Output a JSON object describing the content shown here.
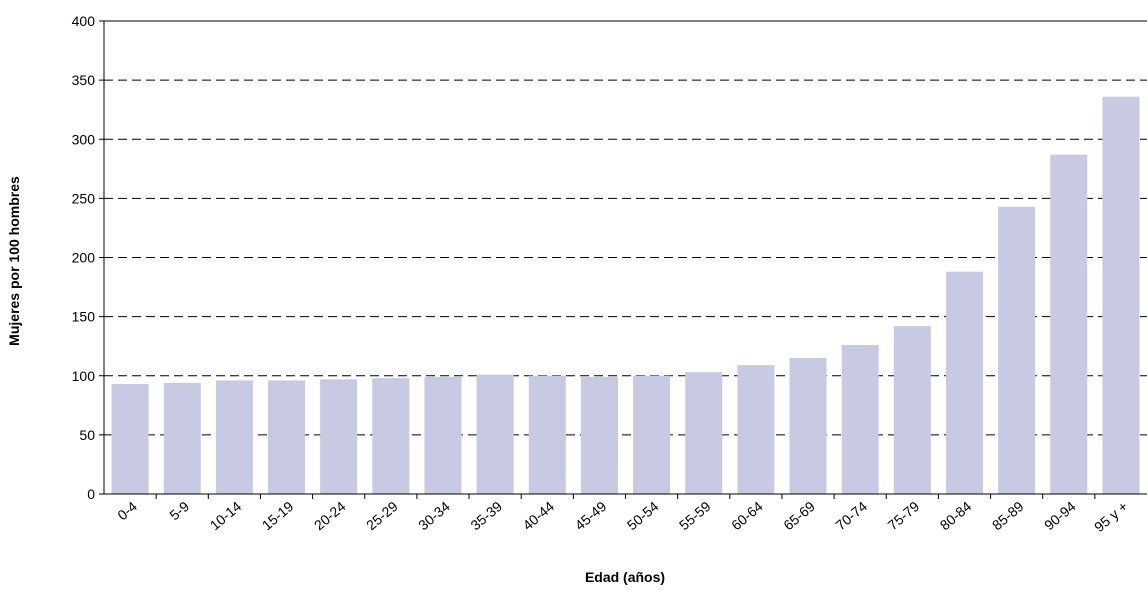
{
  "chart_data": {
    "type": "bar",
    "title": "",
    "xlabel": "Edad (años)",
    "ylabel": "Mujeres por 100 hombres",
    "ylim": [
      0,
      400
    ],
    "yticks": [
      0,
      50,
      100,
      150,
      200,
      250,
      300,
      350,
      400
    ],
    "grid": "horizontal dashed",
    "bar_color": "#c8c9e2",
    "categories": [
      "0-4",
      "5-9",
      "10-14",
      "15-19",
      "20-24",
      "25-29",
      "30-34",
      "35-39",
      "40-44",
      "45-49",
      "50-54",
      "55-59",
      "60-64",
      "65-69",
      "70-74",
      "75-79",
      "80-84",
      "85-89",
      "90-94",
      "95 y +"
    ],
    "values": [
      93,
      94,
      96,
      96,
      97,
      98,
      99,
      101,
      100,
      99,
      100,
      103,
      109,
      115,
      126,
      142,
      188,
      243,
      287,
      336
    ]
  }
}
